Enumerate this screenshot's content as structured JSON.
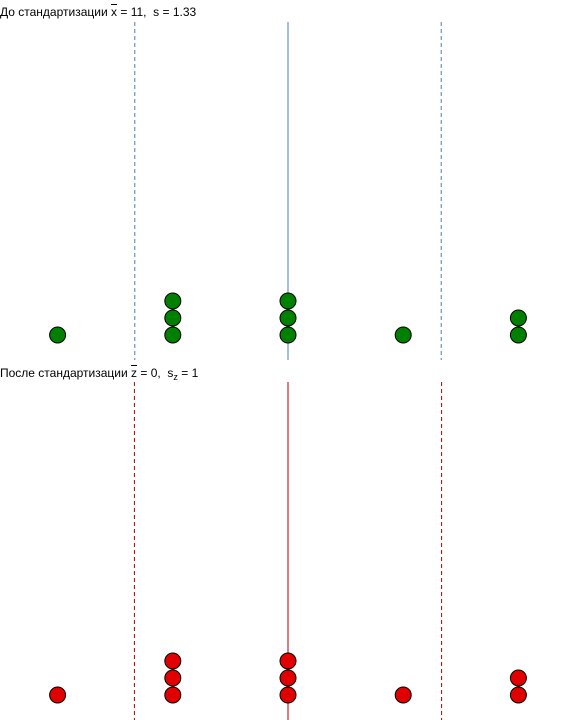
{
  "chart_data": [
    {
      "type": "scatter",
      "title": {
        "prefix": "До стандартизации ",
        "mean_symbol": "x",
        "mean_text": " = 11,",
        "sd_symbol": "s",
        "sd_sub": "",
        "sd_text": " = 1.33"
      },
      "points_x": [
        9,
        10,
        10,
        10,
        11,
        11,
        11,
        12,
        13,
        13
      ],
      "mean": 11,
      "sd": 1.33,
      "xlim": [
        8.5,
        13.5
      ],
      "point_color": "#008000",
      "line_color": "#4a7ebb"
    },
    {
      "type": "scatter",
      "title": {
        "prefix": "После стандартизации ",
        "mean_symbol": "z",
        "mean_text": " = 0,",
        "sd_symbol": "s",
        "sd_sub": "z",
        "sd_text": " = 1"
      },
      "points_x": [
        -1.5,
        -0.75,
        -0.75,
        -0.75,
        0,
        0,
        0,
        0.75,
        1.5,
        1.5
      ],
      "mean": 0,
      "sd": 1,
      "xlim": [
        -1.875,
        1.875
      ],
      "point_color": "#e00000",
      "line_color": "#b00000"
    }
  ]
}
